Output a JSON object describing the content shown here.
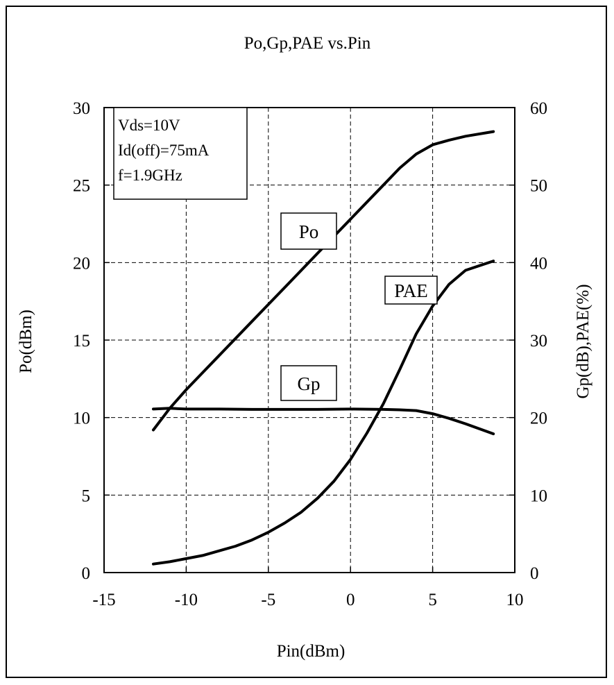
{
  "chart_data": {
    "type": "line",
    "title": "Po,Gp,PAE vs.Pin",
    "xlabel": "Pin(dBm)",
    "ylabel": "Po(dBm)",
    "y2label": "Gp(dB),PAE(%)",
    "xlim": [
      -15,
      10
    ],
    "ylim": [
      0,
      30
    ],
    "y2lim": [
      0,
      60
    ],
    "x_ticks": [
      -15,
      -10,
      -5,
      0,
      5,
      10
    ],
    "y_ticks": [
      0,
      5,
      10,
      15,
      20,
      25,
      30
    ],
    "y2_ticks": [
      0,
      10,
      20,
      30,
      40,
      50,
      60
    ],
    "grid": "dashed",
    "conditions": [
      "Vds=10V",
      "Id(off)=75mA",
      "f=1.9GHz"
    ],
    "series": [
      {
        "name": "Po",
        "axis": "left",
        "x": [
          -12,
          -11,
          -10,
          -9,
          -8,
          -7,
          -6,
          -5,
          -4,
          -3,
          -2,
          -1,
          0,
          1,
          2,
          3,
          4,
          5,
          6,
          7,
          8.7
        ],
        "y": [
          9.2,
          10.6,
          11.8,
          12.9,
          14.0,
          15.1,
          16.2,
          17.3,
          18.4,
          19.5,
          20.6,
          21.7,
          22.8,
          23.9,
          25.0,
          26.1,
          27.0,
          27.6,
          27.9,
          28.15,
          28.45
        ]
      },
      {
        "name": "Gp",
        "axis": "right",
        "x": [
          -12,
          -11,
          -10,
          -8,
          -6,
          -4,
          -2,
          0,
          2,
          3,
          4,
          5,
          6,
          7,
          8.7
        ],
        "y": [
          21.1,
          21.2,
          21.1,
          21.1,
          21.05,
          21.05,
          21.05,
          21.1,
          21.05,
          21.0,
          20.9,
          20.5,
          19.9,
          19.2,
          17.9
        ]
      },
      {
        "name": "PAE",
        "axis": "right",
        "x": [
          -12,
          -11,
          -10,
          -9,
          -8,
          -7,
          -6,
          -5,
          -4,
          -3,
          -2,
          -1,
          0,
          1,
          2,
          3,
          4,
          5,
          6,
          7,
          8.7
        ],
        "y": [
          1.1,
          1.4,
          1.8,
          2.2,
          2.8,
          3.4,
          4.2,
          5.2,
          6.4,
          7.8,
          9.6,
          11.8,
          14.6,
          18.0,
          21.8,
          26.2,
          30.8,
          34.4,
          37.2,
          39.0,
          40.2
        ]
      }
    ],
    "labels": [
      {
        "text": "Po",
        "series": "Po"
      },
      {
        "text": "PAE",
        "series": "PAE"
      },
      {
        "text": "Gp",
        "series": "Gp"
      }
    ]
  }
}
